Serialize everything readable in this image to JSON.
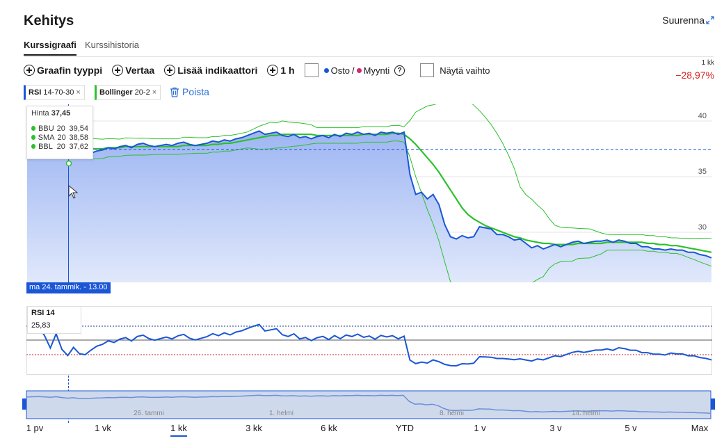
{
  "title": "Kehitys",
  "zoom_label": "Suurenna",
  "tabs": [
    {
      "label": "Kurssigraafi",
      "active": true
    },
    {
      "label": "Kurssihistoria",
      "active": false
    }
  ],
  "toolbar": {
    "chart_type": "Graafin tyyppi",
    "compare": "Vertaa",
    "add_indicator": "Lisää indikaattori",
    "interval": "1 h",
    "buy_label": "Osto",
    "separator": "/",
    "sell_label": "Myynti",
    "show_volume": "Näytä vaihto"
  },
  "period_label": "1 kk",
  "change": "−28,97%",
  "indicators": [
    {
      "name": "RSI",
      "params": "14-70-30",
      "color": "#1a56d6"
    },
    {
      "name": "Bollinger",
      "params": "20-2",
      "color": "#2cc12c"
    }
  ],
  "remove_label": "Poista",
  "tooltip": {
    "price_label": "Hinta",
    "price_value": "37,45",
    "rows": [
      {
        "name": "BBU",
        "period": "20",
        "value": "39,54"
      },
      {
        "name": "SMA",
        "period": "20",
        "value": "38,58"
      },
      {
        "name": "BBL",
        "period": "20",
        "value": "37,62"
      }
    ]
  },
  "crosshair_date": "ma 24. tammik. - 13.00",
  "rsi_panel": {
    "title": "RSI 14",
    "value": "25,83"
  },
  "navigator_labels": [
    "26. tammi",
    "1. helmi",
    "8. helmi",
    "14. helmi"
  ],
  "ranges": [
    {
      "label": "1 pv",
      "active": false
    },
    {
      "label": "1 vk",
      "active": false
    },
    {
      "label": "1 kk",
      "active": true
    },
    {
      "label": "3 kk",
      "active": false
    },
    {
      "label": "6 kk",
      "active": false
    },
    {
      "label": "YTD",
      "active": false
    },
    {
      "label": "1 v",
      "active": false
    },
    {
      "label": "3 v",
      "active": false
    },
    {
      "label": "5 v",
      "active": false
    },
    {
      "label": "Max",
      "active": false
    }
  ],
  "colors": {
    "price": "#1a56d6",
    "bands": "#2cc12c",
    "negative": "#d6261c",
    "sell_dot": "#d6246e"
  },
  "chart_data": {
    "type": "line",
    "y_ticks": [
      30,
      35,
      40
    ],
    "ylim": [
      25.5,
      41.5
    ],
    "price_reference": 37.45,
    "price": [
      37.9,
      38.1,
      38.2,
      38.0,
      37.8,
      38.1,
      37.6,
      37.2,
      37.5,
      37.0,
      36.9,
      37.1,
      37.3,
      37.4,
      37.6,
      37.5,
      37.7,
      37.8,
      37.6,
      37.9,
      38.0,
      37.8,
      37.7,
      37.8,
      37.9,
      37.8,
      38.0,
      38.1,
      37.9,
      37.8,
      37.9,
      38.0,
      38.2,
      38.1,
      38.3,
      38.2,
      38.4,
      38.5,
      38.7,
      38.9,
      39.1,
      38.8,
      38.9,
      39.0,
      38.7,
      38.6,
      38.8,
      38.5,
      38.6,
      38.4,
      38.6,
      38.7,
      38.5,
      38.8,
      38.6,
      38.9,
      38.8,
      39.0,
      38.8,
      38.9,
      38.7,
      39.0,
      38.9,
      39.0,
      38.8,
      39.0,
      35.2,
      33.4,
      33.6,
      33.0,
      33.4,
      32.5,
      30.7,
      29.6,
      29.4,
      29.7,
      29.5,
      29.6,
      30.5,
      30.4,
      30.3,
      29.8,
      29.8,
      29.6,
      29.3,
      29.4,
      29.0,
      28.6,
      28.8,
      28.5,
      28.7,
      28.9,
      28.7,
      28.9,
      29.1,
      29.2,
      29.0,
      29.1,
      29.2,
      29.2,
      29.3,
      29.1,
      29.3,
      29.2,
      29.0,
      29.0,
      28.7,
      28.7,
      28.5,
      28.5,
      28.4,
      28.5,
      28.4,
      28.4,
      28.2,
      28.2,
      28.0,
      27.9,
      27.7
    ],
    "sma": [
      38.6,
      38.6,
      38.5,
      38.5,
      38.4,
      38.3,
      38.2,
      38.0,
      37.9,
      37.7,
      37.6,
      37.5,
      37.5,
      37.5,
      37.6,
      37.6,
      37.6,
      37.7,
      37.7,
      37.7,
      37.7,
      37.7,
      37.7,
      37.7,
      37.7,
      37.7,
      37.7,
      37.8,
      37.8,
      37.8,
      37.8,
      37.8,
      37.9,
      37.9,
      38.0,
      38.0,
      38.1,
      38.2,
      38.3,
      38.4,
      38.5,
      38.6,
      38.7,
      38.7,
      38.8,
      38.8,
      38.8,
      38.8,
      38.8,
      38.8,
      38.7,
      38.7,
      38.7,
      38.7,
      38.7,
      38.7,
      38.7,
      38.7,
      38.8,
      38.8,
      38.8,
      38.8,
      38.8,
      38.9,
      38.9,
      38.8,
      38.4,
      37.9,
      37.3,
      36.7,
      36.1,
      35.4,
      34.6,
      33.8,
      33.0,
      32.2,
      31.6,
      31.2,
      30.9,
      30.6,
      30.4,
      30.2,
      30.0,
      29.8,
      29.6,
      29.5,
      29.3,
      29.2,
      29.1,
      29.0,
      29.0,
      28.9,
      28.9,
      28.9,
      28.9,
      29.0,
      29.0,
      29.0,
      29.0,
      29.0,
      29.1,
      29.1,
      29.1,
      29.1,
      29.1,
      29.1,
      29.1,
      29.0,
      29.0,
      28.9,
      28.9,
      28.8,
      28.8,
      28.7,
      28.6,
      28.5,
      28.4,
      28.3,
      28.2
    ]
  }
}
